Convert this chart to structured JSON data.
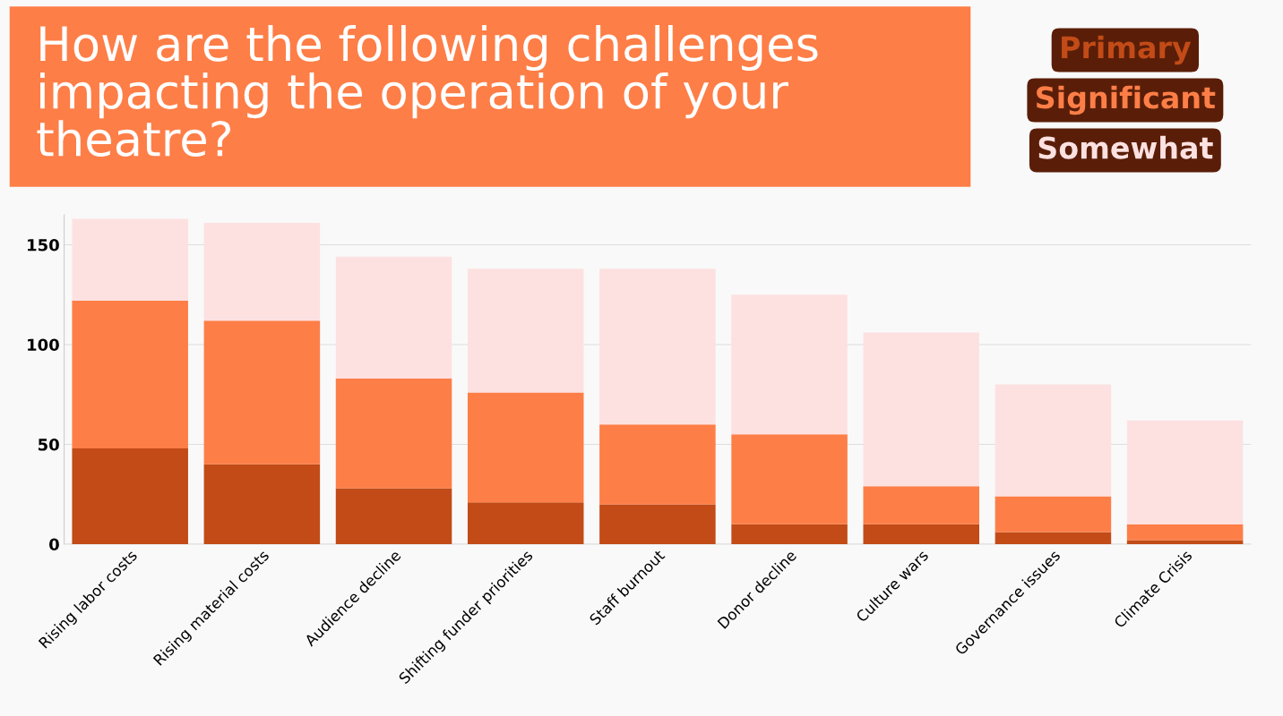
{
  "chart_data": {
    "type": "bar",
    "title": "How are the following challenges impacting the operation of your theatre?",
    "categories": [
      "Rising labor costs",
      "Rising material costs",
      "Audience decline",
      "Shifting funder priorities",
      "Staff burnout",
      "Donor decline",
      "Culture wars",
      "Governance issues",
      "Climate Crisis"
    ],
    "stacked": true,
    "series": [
      {
        "name": "Primary",
        "color": "#c24b17",
        "values": [
          48,
          40,
          28,
          21,
          20,
          10,
          10,
          6,
          2
        ]
      },
      {
        "name": "Significant",
        "color": "#fe7e47",
        "values": [
          74,
          72,
          55,
          55,
          40,
          45,
          19,
          18,
          8
        ]
      },
      {
        "name": "Somewhat",
        "color": "#fde1e1",
        "values": [
          41,
          49,
          61,
          62,
          78,
          70,
          77,
          56,
          52
        ]
      }
    ],
    "ylim": [
      0,
      165
    ],
    "yticks": [
      0,
      50,
      100,
      150
    ],
    "grid": "y",
    "legend": "top right"
  }
}
